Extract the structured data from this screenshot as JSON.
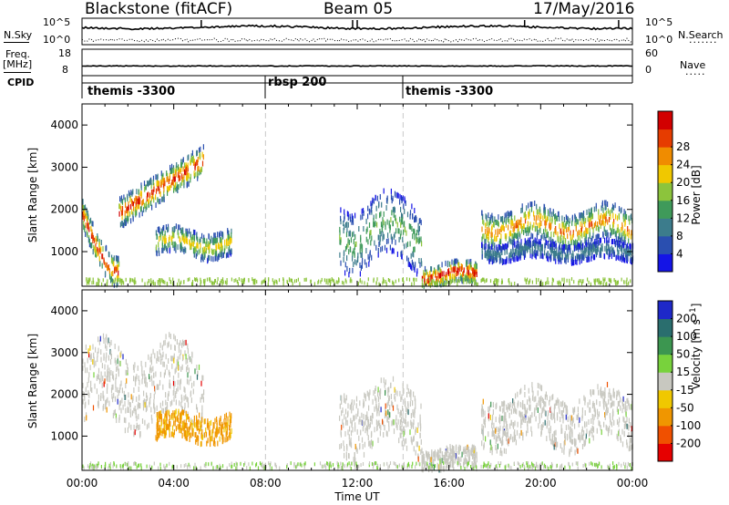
{
  "header": {
    "station": "Blackstone (fitACF)",
    "beam": "Beam 05",
    "date": "17/May/2016"
  },
  "top_panels": {
    "nsky_label": "N.Sky",
    "nsky_ticks": [
      "10^5",
      "10^0"
    ],
    "nsearch_label": "N.Search",
    "nsearch_ticks": [
      "10^5",
      "10^0"
    ],
    "freq_label_1": "Freq.",
    "freq_label_2": "[MHz]",
    "freq_ticks": [
      "18",
      "8"
    ],
    "nave_label": "Nave",
    "nave_ticks": [
      "60",
      "0"
    ],
    "cpid_label": "CPID",
    "cpid_segments": [
      {
        "label": "themis -3300",
        "start_hour": 0
      },
      {
        "label": "rbsp 200",
        "start_hour": 8
      },
      {
        "label": "themis -3300",
        "start_hour": 14
      }
    ]
  },
  "chart_data": [
    {
      "type": "heatmap",
      "panel": "power",
      "ylabel": "Slant Range [km]",
      "ylim": [
        180,
        4500
      ],
      "xlim_hours": [
        0,
        24
      ],
      "yticks": [
        1000,
        2000,
        3000,
        4000
      ],
      "colorbar_label": "Power [dB]",
      "colorbar_ticks": [
        4,
        8,
        12,
        16,
        20,
        24,
        28
      ],
      "colorbar_range": [
        0,
        30
      ],
      "colorbar_colors": [
        "#1414e6",
        "#2a4fb0",
        "#3c7c8c",
        "#3f9a5a",
        "#8cc43c",
        "#f0c800",
        "#f08c00",
        "#e63c00",
        "#d20000"
      ],
      "features": [
        {
          "hours": [
            0,
            5.3
          ],
          "range_km": [
            1300,
            3100
          ],
          "peak_db": 28,
          "desc": "arc"
        },
        {
          "hours": [
            3.2,
            6.5
          ],
          "range_km": [
            900,
            1500
          ],
          "peak_db": 20
        },
        {
          "hours": [
            11.2,
            14.8
          ],
          "range_km": [
            700,
            2200
          ],
          "peak_db": 14
        },
        {
          "hours": [
            14.8,
            17.2
          ],
          "range_km": [
            200,
            700
          ],
          "peak_db": 30
        },
        {
          "hours": [
            17.4,
            24
          ],
          "range_km": [
            1200,
            2000
          ],
          "peak_db": 24
        },
        {
          "hours": [
            17.4,
            24
          ],
          "range_km": [
            800,
            1200
          ],
          "peak_db": 10
        }
      ]
    },
    {
      "type": "heatmap",
      "panel": "velocity",
      "xlabel": "Time UT",
      "ylabel": "Slant Range [km]",
      "ylim": [
        180,
        4500
      ],
      "xlim_hours": [
        0,
        24
      ],
      "yticks": [
        1000,
        2000,
        3000,
        4000
      ],
      "xticks": [
        "00:00",
        "04:00",
        "08:00",
        "12:00",
        "16:00",
        "20:00",
        "00:00"
      ],
      "colorbar_label": "Velocity [m s^-1]",
      "colorbar_ticks": [
        200,
        100,
        50,
        15,
        -15,
        -50,
        -100,
        -200
      ],
      "colorbar_colors": [
        "#1e28c8",
        "#2a6e6e",
        "#3c9650",
        "#78d23c",
        "#c8c8c0",
        "#f0c800",
        "#f09600",
        "#f05000",
        "#e60000"
      ],
      "features": [
        {
          "hours": [
            0,
            5.3
          ],
          "range_km": [
            1300,
            3100
          ],
          "velocity": 0,
          "desc": "ground scatter"
        },
        {
          "hours": [
            3.2,
            6.5
          ],
          "range_km": [
            900,
            1500
          ],
          "velocity": -60
        },
        {
          "hours": [
            11.2,
            14.8
          ],
          "range_km": [
            700,
            2200
          ],
          "velocity": 0
        },
        {
          "hours": [
            14.8,
            17.2
          ],
          "range_km": [
            200,
            700
          ],
          "velocity": 0
        },
        {
          "hours": [
            17.4,
            24
          ],
          "range_km": [
            800,
            2000
          ],
          "velocity": 0
        }
      ]
    }
  ],
  "colors": {
    "axis": "#000000",
    "dashed_divider": "#c8c8c8"
  }
}
